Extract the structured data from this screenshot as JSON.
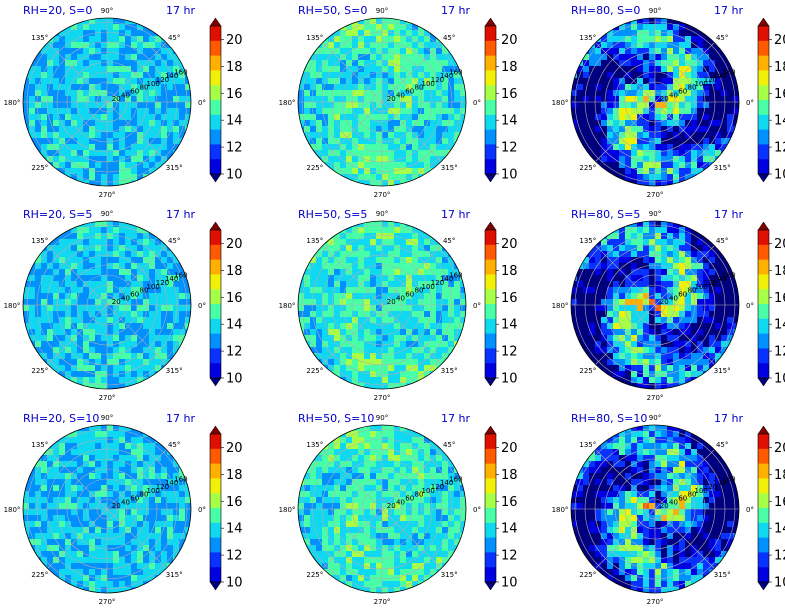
{
  "figure": {
    "time_label": "17 hr"
  },
  "colorbar": {
    "levels": [
      10,
      11,
      12,
      13,
      14,
      15,
      16,
      17,
      18,
      19,
      20,
      21
    ],
    "colors": [
      "#00007f",
      "#0000e0",
      "#0a32ff",
      "#0090ff",
      "#10d8f0",
      "#48ffa8",
      "#a8ff48",
      "#f0f008",
      "#ffb000",
      "#ff5a00",
      "#e01000",
      "#7f0000"
    ],
    "ticks": [
      "10",
      "12",
      "14",
      "16",
      "18",
      "20"
    ]
  },
  "chart_data": {
    "type": "heatmap",
    "projection": "polar",
    "angle_ticks": [
      "0°",
      "45°",
      "90°",
      "135°",
      "180°",
      "225°",
      "270°",
      "315°"
    ],
    "radial_ticks": [
      "20",
      "40",
      "60",
      "80",
      "100",
      "120",
      "140",
      "160"
    ],
    "panels": [
      {
        "title": "RH=20, S=0",
        "rh": 20,
        "s": 0
      },
      {
        "title": "RH=50, S=0",
        "rh": 50,
        "s": 0
      },
      {
        "title": "RH=80, S=0",
        "rh": 80,
        "s": 0
      },
      {
        "title": "RH=20, S=5",
        "rh": 20,
        "s": 5
      },
      {
        "title": "RH=50, S=5",
        "rh": 50,
        "s": 5
      },
      {
        "title": "RH=80, S=5",
        "rh": 80,
        "s": 5
      },
      {
        "title": "RH=20, S=10",
        "rh": 20,
        "s": 10
      },
      {
        "title": "RH=50, S=10",
        "rh": 50,
        "s": 10
      },
      {
        "title": "RH=80, S=10",
        "rh": 80,
        "s": 10
      }
    ]
  }
}
